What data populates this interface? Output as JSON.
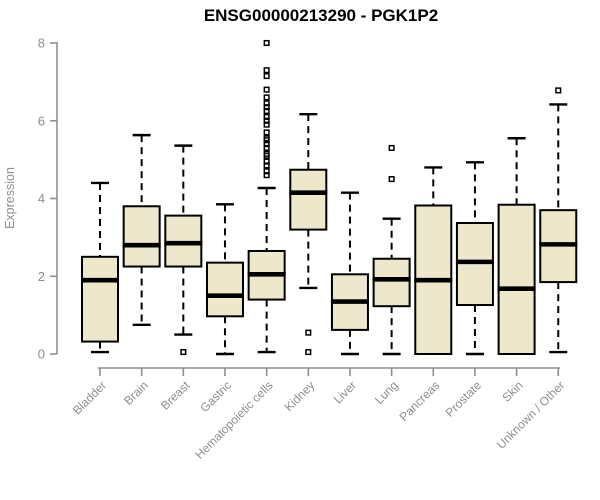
{
  "title": "ENSG00000213290 - PGK1P2",
  "y_axis": {
    "label": "Expression"
  },
  "colors": {
    "box_fill": "#EDE8CC",
    "box_stroke": "#000000",
    "median_color": "#000000",
    "axis_color": "#8f8f8f",
    "axis_text_color": "#8a8f94",
    "title_color": "#000000",
    "background": "#ffffff"
  },
  "chart_data": {
    "type": "boxplot",
    "title": "ENSG00000213290 - PGK1P2",
    "xlabel": "",
    "ylabel": "Expression",
    "ylim": [
      0,
      8
    ],
    "yticks": [
      0,
      2,
      4,
      6,
      8
    ],
    "grid": false,
    "legend": false,
    "categories": [
      "Bladder",
      "Brain",
      "Breast",
      "Gastric",
      "Hematopoietic cells",
      "Kidney",
      "Liver",
      "Lung",
      "Pancreas",
      "Prostate",
      "Skin",
      "Unknown / Other"
    ],
    "boxes": [
      {
        "category": "Bladder",
        "whisker_low": 0.05,
        "q1": 0.32,
        "median": 1.9,
        "q3": 2.5,
        "whisker_high": 4.4,
        "outliers": []
      },
      {
        "category": "Brain",
        "whisker_low": 0.75,
        "q1": 2.25,
        "median": 2.8,
        "q3": 3.8,
        "whisker_high": 5.63,
        "outliers": []
      },
      {
        "category": "Breast",
        "whisker_low": 0.5,
        "q1": 2.25,
        "median": 2.85,
        "q3": 3.56,
        "whisker_high": 5.36,
        "outliers": [
          0.05
        ]
      },
      {
        "category": "Gastric",
        "whisker_low": 0.0,
        "q1": 0.97,
        "median": 1.5,
        "q3": 2.35,
        "whisker_high": 3.85,
        "outliers": []
      },
      {
        "category": "Hematopoietic cells",
        "whisker_low": 0.05,
        "q1": 1.4,
        "median": 2.05,
        "q3": 2.65,
        "whisker_high": 4.27,
        "outliers": [
          8.0,
          7.3,
          7.15,
          6.8,
          6.6,
          6.45,
          6.35,
          6.25,
          6.1,
          6.0,
          5.9,
          5.7,
          5.55,
          5.5,
          5.4,
          5.3,
          5.15,
          5.1,
          4.95,
          4.85,
          4.7,
          4.6
        ]
      },
      {
        "category": "Kidney",
        "whisker_low": 1.7,
        "q1": 3.2,
        "median": 4.15,
        "q3": 4.74,
        "whisker_high": 6.17,
        "outliers": [
          0.55,
          0.05
        ]
      },
      {
        "category": "Liver",
        "whisker_low": 0.0,
        "q1": 0.62,
        "median": 1.35,
        "q3": 2.05,
        "whisker_high": 4.15,
        "outliers": []
      },
      {
        "category": "Lung",
        "whisker_low": 0.0,
        "q1": 1.23,
        "median": 1.92,
        "q3": 2.45,
        "whisker_high": 3.48,
        "outliers": [
          5.3,
          4.5
        ]
      },
      {
        "category": "Pancreas",
        "whisker_low": 0.0,
        "q1": 0.0,
        "median": 1.9,
        "q3": 3.82,
        "whisker_high": 4.8,
        "outliers": []
      },
      {
        "category": "Prostate",
        "whisker_low": 0.0,
        "q1": 1.26,
        "median": 2.37,
        "q3": 3.37,
        "whisker_high": 4.93,
        "outliers": []
      },
      {
        "category": "Skin",
        "whisker_low": 0.0,
        "q1": 0.0,
        "median": 1.68,
        "q3": 3.84,
        "whisker_high": 5.55,
        "outliers": []
      },
      {
        "category": "Unknown / Other",
        "whisker_low": 0.05,
        "q1": 1.85,
        "median": 2.82,
        "q3": 3.7,
        "whisker_high": 6.42,
        "outliers": [
          6.78
        ]
      }
    ]
  }
}
